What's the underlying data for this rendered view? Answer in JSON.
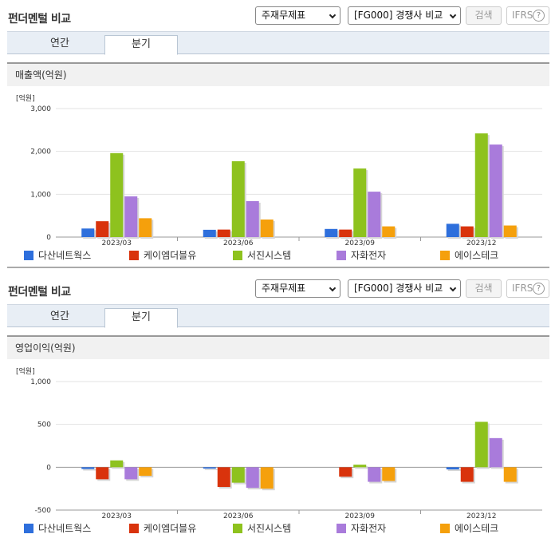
{
  "sections": [
    {
      "title": "펀더멘털 비교",
      "select_statement": "주재무제표",
      "select_group": "[FG000] 경쟁사 비교",
      "search_label": "검색",
      "ifrs_label": "IFRS",
      "help_label": "?",
      "tabs": [
        {
          "label": "연간"
        },
        {
          "label": "분기"
        }
      ],
      "active_tab": "분기",
      "chart_title": "매출액(억원)"
    },
    {
      "title": "펀더멘털 비교",
      "select_statement": "주재무제표",
      "select_group": "[FG000] 경쟁사 비교",
      "search_label": "검색",
      "ifrs_label": "IFRS",
      "help_label": "?",
      "tabs": [
        {
          "label": "연간"
        },
        {
          "label": "분기"
        }
      ],
      "active_tab": "분기",
      "chart_title": "영업이익(억원)"
    }
  ],
  "chart_data": [
    {
      "type": "bar",
      "unit_label": "[억원]",
      "categories": [
        "2023/03",
        "2023/06",
        "2023/09",
        "2023/12"
      ],
      "ylim": [
        0,
        3000
      ],
      "yticks": [
        0,
        1000,
        2000,
        3000
      ],
      "ytick_labels": [
        "0",
        "1,000",
        "2,000",
        "3,000"
      ],
      "series": [
        {
          "name": "다산네트웍스",
          "color": "#2e6fdc",
          "values": [
            200,
            170,
            190,
            310
          ]
        },
        {
          "name": "케이엠더블유",
          "color": "#d9330c",
          "values": [
            370,
            175,
            175,
            250
          ]
        },
        {
          "name": "서진시스템",
          "color": "#8ec21e",
          "values": [
            1960,
            1770,
            1600,
            2420
          ]
        },
        {
          "name": "자화전자",
          "color": "#a97bdb",
          "values": [
            950,
            840,
            1060,
            2160
          ]
        },
        {
          "name": "에이스테크",
          "color": "#f5a00c",
          "values": [
            440,
            410,
            250,
            270
          ]
        }
      ]
    },
    {
      "type": "bar",
      "unit_label": "[억원]",
      "categories": [
        "2023/03",
        "2023/06",
        "2023/09",
        "2023/12"
      ],
      "ylim": [
        -500,
        1000
      ],
      "yticks": [
        -500,
        0,
        500,
        1000
      ],
      "ytick_labels": [
        "-500",
        "0",
        "500",
        "1,000"
      ],
      "series": [
        {
          "name": "다산네트웍스",
          "color": "#2e6fdc",
          "values": [
            -20,
            -15,
            0,
            -25
          ]
        },
        {
          "name": "케이엠더블유",
          "color": "#d9330c",
          "values": [
            -140,
            -230,
            -110,
            -170
          ]
        },
        {
          "name": "서진시스템",
          "color": "#8ec21e",
          "values": [
            80,
            -180,
            30,
            530
          ]
        },
        {
          "name": "자화전자",
          "color": "#a97bdb",
          "values": [
            -140,
            -240,
            -170,
            340
          ]
        },
        {
          "name": "에이스테크",
          "color": "#f5a00c",
          "values": [
            -100,
            -250,
            -160,
            -170
          ]
        }
      ]
    }
  ]
}
